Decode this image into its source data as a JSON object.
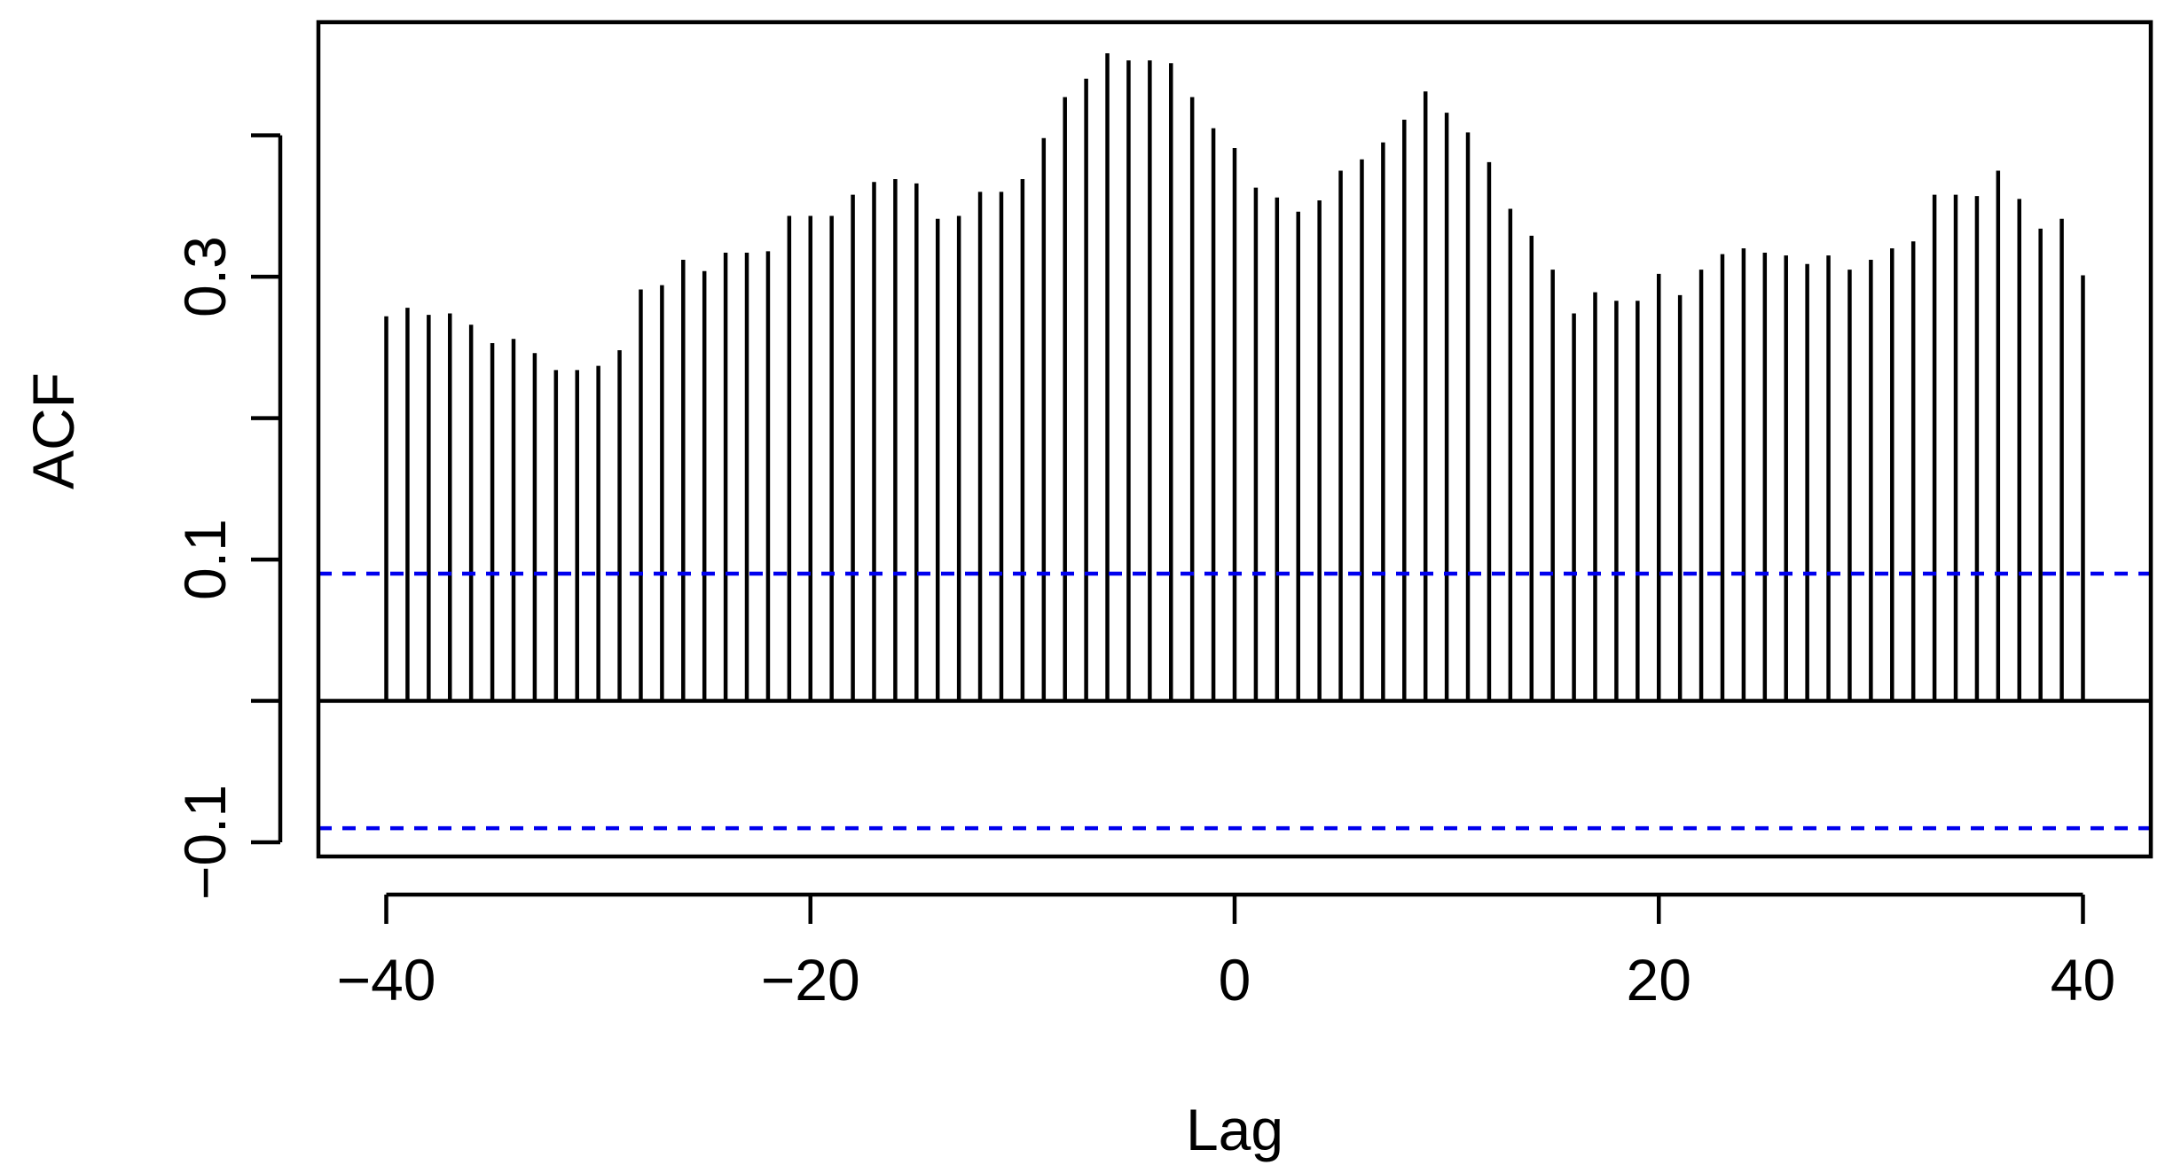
{
  "chart_data": {
    "type": "bar",
    "xlabel": "Lag",
    "ylabel": "ACF",
    "xlim": [
      -43.2,
      43.2
    ],
    "ylim": [
      -0.11,
      0.48
    ],
    "x_ticks": [
      -40,
      -20,
      0,
      20,
      40
    ],
    "x_tick_labels": [
      "−40",
      "−20",
      "0",
      "20",
      "40"
    ],
    "y_ticks": [
      -0.1,
      0.0,
      0.1,
      0.2,
      0.3,
      0.4
    ],
    "y_tick_labels": [
      {
        "value": -0.1,
        "label": "−0.1"
      },
      {
        "value": 0.1,
        "label": "0.1"
      },
      {
        "value": 0.3,
        "label": "0.3"
      }
    ],
    "confidence_bound": 0.09,
    "colors": {
      "bars": "#000000",
      "zero_line": "#000000",
      "confidence": "#0000ee",
      "frame": "#000000"
    },
    "lags": [
      -40,
      -39,
      -38,
      -37,
      -36,
      -35,
      -34,
      -33,
      -32,
      -31,
      -30,
      -29,
      -28,
      -27,
      -26,
      -25,
      -24,
      -23,
      -22,
      -21,
      -20,
      -19,
      -18,
      -17,
      -16,
      -15,
      -14,
      -13,
      -12,
      -11,
      -10,
      -9,
      -8,
      -7,
      -6,
      -5,
      -4,
      -3,
      -2,
      -1,
      0,
      1,
      2,
      3,
      4,
      5,
      6,
      7,
      8,
      9,
      10,
      11,
      12,
      13,
      14,
      15,
      16,
      17,
      18,
      19,
      20,
      21,
      22,
      23,
      24,
      25,
      26,
      27,
      28,
      29,
      30,
      31,
      32,
      33,
      34,
      35,
      36,
      37,
      38,
      39,
      40
    ],
    "values": [
      0.272,
      0.278,
      0.273,
      0.274,
      0.266,
      0.253,
      0.256,
      0.246,
      0.234,
      0.234,
      0.237,
      0.248,
      0.291,
      0.294,
      0.312,
      0.304,
      0.317,
      0.317,
      0.318,
      0.343,
      0.343,
      0.343,
      0.358,
      0.367,
      0.369,
      0.366,
      0.341,
      0.343,
      0.36,
      0.36,
      0.369,
      0.398,
      0.427,
      0.44,
      0.458,
      0.453,
      0.453,
      0.451,
      0.427,
      0.405,
      0.391,
      0.363,
      0.356,
      0.346,
      0.354,
      0.375,
      0.383,
      0.395,
      0.411,
      0.431,
      0.416,
      0.402,
      0.381,
      0.348,
      0.329,
      0.305,
      0.274,
      0.289,
      0.283,
      0.283,
      0.302,
      0.287,
      0.305,
      0.316,
      0.32,
      0.317,
      0.315,
      0.309,
      0.315,
      0.305,
      0.312,
      0.32,
      0.325,
      0.358,
      0.358,
      0.357,
      0.375,
      0.355,
      0.334,
      0.341,
      0.301
    ]
  }
}
